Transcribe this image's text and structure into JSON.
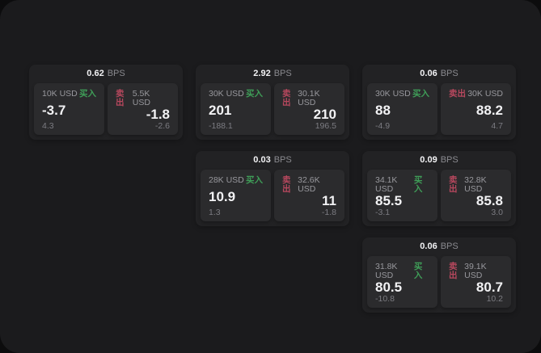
{
  "labels": {
    "buy": "买入",
    "sell": "卖出",
    "bps_suffix": "BPS"
  },
  "colors": {
    "buy_green": "#3f9e58",
    "sell_red": "#b8485e",
    "page_background": "#0c0c0d",
    "panel_background": "#1b1b1d",
    "card_background": "#222224",
    "tile_background": "#2b2b2d"
  },
  "cards": [
    {
      "bps": "0.62",
      "buy": {
        "amount": "10K USD",
        "price": "-3.7",
        "change": "4.3"
      },
      "sell": {
        "amount": "5.5K USD",
        "price": "-1.8",
        "change": "-2.6"
      }
    },
    {
      "bps": "2.92",
      "buy": {
        "amount": "30K USD",
        "price": "201",
        "change": "-188.1"
      },
      "sell": {
        "amount": "30.1K USD",
        "price": "210",
        "change": "196.5"
      }
    },
    {
      "bps": "0.06",
      "buy": {
        "amount": "30K USD",
        "price": "88",
        "change": "-4.9"
      },
      "sell": {
        "amount": "30K USD",
        "price": "88.2",
        "change": "4.7"
      }
    },
    {
      "bps": "0.03",
      "buy": {
        "amount": "28K USD",
        "price": "10.9",
        "change": "1.3"
      },
      "sell": {
        "amount": "32.6K USD",
        "price": "11",
        "change": "-1.8"
      }
    },
    {
      "bps": "0.09",
      "buy": {
        "amount": "34.1K USD",
        "price": "85.5",
        "change": "-3.1"
      },
      "sell": {
        "amount": "32.8K USD",
        "price": "85.8",
        "change": "3.0"
      }
    },
    {
      "bps": "0.06",
      "buy": {
        "amount": "31.8K USD",
        "price": "80.5",
        "change": "-10.8"
      },
      "sell": {
        "amount": "39.1K USD",
        "price": "80.7",
        "change": "10.2"
      }
    }
  ]
}
